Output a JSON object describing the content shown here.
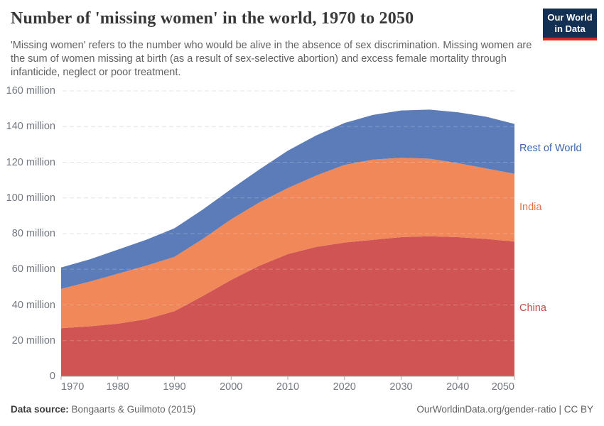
{
  "header": {
    "title": "Number of 'missing women' in the world, 1970 to 2050",
    "subtitle": "'Missing women' refers to the number who would be alive in the absence of sex discrimination. Missing women are the sum of women missing at birth (as a result of sex-selective abortion) and excess female mortality through infanticide, neglect or poor treatment.",
    "logo": {
      "line1": "Our World",
      "line2": "in Data",
      "bg_color": "#132f52",
      "accent_color": "#d42b21"
    }
  },
  "chart_data": {
    "type": "area",
    "stacked": true,
    "title": "Number of 'missing women' in the world, 1970 to 2050",
    "xlabel": "",
    "ylabel": "",
    "xlim": [
      1970,
      2050
    ],
    "ylim": [
      0,
      160
    ],
    "grid": "dashed",
    "legend_position": "right-edge-labels",
    "x": [
      1970,
      1975,
      1980,
      1985,
      1990,
      1995,
      2000,
      2005,
      2010,
      2015,
      2020,
      2025,
      2030,
      2035,
      2040,
      2045,
      2050
    ],
    "series": [
      {
        "name": "China",
        "color": "#d15454",
        "label_color": "#c94a4a",
        "values": [
          27,
          28,
          29.5,
          32,
          36.5,
          45,
          54,
          62,
          68.5,
          72.5,
          75,
          76.5,
          78,
          78.5,
          78,
          77,
          75.5
        ]
      },
      {
        "name": "India",
        "color": "#f0885a",
        "label_color": "#e4744a",
        "values": [
          22,
          25,
          28,
          30,
          30.5,
          32,
          34,
          35.5,
          37,
          40,
          43.5,
          45,
          44.5,
          43.5,
          41.5,
          39.5,
          38
        ]
      },
      {
        "name": "Rest of World",
        "color": "#5b7cb8",
        "label_color": "#3c66ad",
        "values": [
          12,
          12.5,
          13.5,
          14.5,
          16,
          16.5,
          17,
          18.5,
          21,
          22.5,
          23.5,
          25,
          26.5,
          27.5,
          28.5,
          29,
          28
        ]
      }
    ],
    "yticks": [
      {
        "value": 0,
        "label": "0"
      },
      {
        "value": 20,
        "label": "20 million"
      },
      {
        "value": 40,
        "label": "40 million"
      },
      {
        "value": 60,
        "label": "60 million"
      },
      {
        "value": 80,
        "label": "80 million"
      },
      {
        "value": 100,
        "label": "100 million"
      },
      {
        "value": 120,
        "label": "120 million"
      },
      {
        "value": 140,
        "label": "140 million"
      },
      {
        "value": 160,
        "label": "160 million"
      }
    ],
    "xticks": [
      {
        "value": 1970,
        "label": "1970"
      },
      {
        "value": 1980,
        "label": "1980"
      },
      {
        "value": 1990,
        "label": "1990"
      },
      {
        "value": 2000,
        "label": "2000"
      },
      {
        "value": 2010,
        "label": "2010"
      },
      {
        "value": 2020,
        "label": "2020"
      },
      {
        "value": 2030,
        "label": "2030"
      },
      {
        "value": 2040,
        "label": "2040"
      },
      {
        "value": 2050,
        "label": "2050"
      }
    ],
    "axis_color": "#a9a9a9",
    "grid_color": "#dedede"
  },
  "footer": {
    "datasource_label": "Data source:",
    "datasource_value": "Bongaarts & Guilmoto (2015)",
    "right_text": "OurWorldinData.org/gender-ratio | CC BY"
  }
}
